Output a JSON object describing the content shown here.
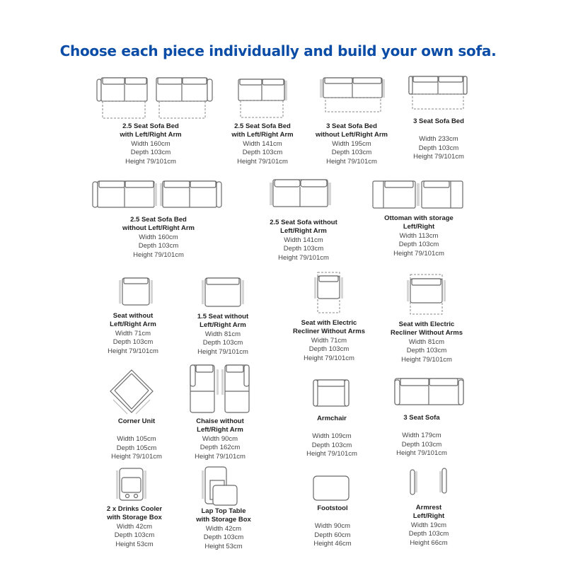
{
  "title": "Choose each piece individually and build your own sofa.",
  "colors": {
    "title": "#0b4da6",
    "line_art": "#6a6a6a"
  },
  "items": [
    {
      "name": [
        "2.5 Seat Sofa Bed",
        "with Left/Right Arm"
      ],
      "specs": [
        "Width 160cm",
        "Depth 103cm",
        "Height 79/101cm"
      ]
    },
    {
      "name": [
        "2.5 Seat Sofa Bed",
        "with Left/Right Arm"
      ],
      "specs": [
        "Width 141cm",
        "Depth 103cm",
        "Height 79/101cm"
      ]
    },
    {
      "name": [
        "3 Seat Sofa Bed",
        "without Left/Right Arm"
      ],
      "specs": [
        "Width 195cm",
        "Depth 103cm",
        "Height 79/101cm"
      ]
    },
    {
      "name": [
        "3 Seat Sofa Bed"
      ],
      "specs": [
        "Width 233cm",
        "Depth 103cm",
        "Height 79/101cm"
      ]
    },
    {
      "name": [
        "2.5 Seat Sofa Bed",
        "without Left/Right Arm"
      ],
      "specs": [
        "Width 160cm",
        "Depth 103cm",
        "Height 79/101cm"
      ]
    },
    {
      "name": [
        "2.5 Seat Sofa without",
        "Left/Right Arm"
      ],
      "specs": [
        "Width 141cm",
        "Depth 103cm",
        "Height 79/101cm"
      ]
    },
    {
      "name": [
        "Ottoman with storage",
        "Left/Right"
      ],
      "specs": [
        "Width 113cm",
        "Depth 103cm",
        "Height 79/101cm"
      ]
    },
    {
      "name": [
        "Seat without",
        "Left/Right Arm"
      ],
      "specs": [
        "Width 71cm",
        "Depth 103cm",
        "Height 79/101cm"
      ]
    },
    {
      "name": [
        "1.5 Seat without",
        "Left/Right Arm"
      ],
      "specs": [
        "Width 81cm",
        "Depth 103cm",
        "Height 79/101cm"
      ]
    },
    {
      "name": [
        "Seat with Electric",
        "Recliner Without Arms"
      ],
      "specs": [
        "Width 71cm",
        "Depth 103cm",
        "Height 79/101cm"
      ]
    },
    {
      "name": [
        "Seat with Electric",
        "Recliner Without Arms"
      ],
      "specs": [
        "Width 81cm",
        "Depth 103cm",
        "Height 79/101cm"
      ]
    },
    {
      "name": [
        "Corner Unit"
      ],
      "specs": [
        "Width 105cm",
        "Depth 105cm",
        "Height 79/101cm"
      ]
    },
    {
      "name": [
        "Chaise  without",
        "Left/Right Arm"
      ],
      "specs": [
        "Width 90cm",
        "Depth 162cm",
        "Height 79/101cm"
      ]
    },
    {
      "name": [
        "Armchair"
      ],
      "specs": [
        "Width 109cm",
        "Depth 103cm",
        "Height 79/101cm"
      ]
    },
    {
      "name": [
        "3 Seat Sofa"
      ],
      "specs": [
        "Width 179cm",
        "Depth 103cm",
        "Height 79/101cm"
      ]
    },
    {
      "name": [
        "2 x Drinks Cooler",
        "with Storage Box"
      ],
      "specs": [
        "Width 42cm",
        "Depth 103cm",
        "Height 53cm"
      ]
    },
    {
      "name": [
        "Lap Top Table",
        "with Storage Box"
      ],
      "specs": [
        "Width 42cm",
        "Depth 103cm",
        "Height 53cm"
      ]
    },
    {
      "name": [
        "Footstool"
      ],
      "specs": [
        "Width 90cm",
        "Depth 60cm",
        "Height 46cm"
      ]
    },
    {
      "name": [
        "Armrest",
        "Left/Right"
      ],
      "specs": [
        "Width 19cm",
        "Depth 103cm",
        "Height 66cm"
      ]
    }
  ]
}
